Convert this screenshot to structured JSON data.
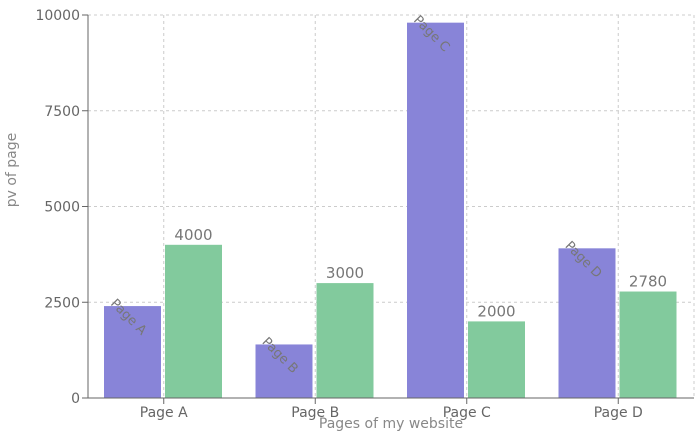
{
  "chart_data": {
    "type": "bar",
    "categories": [
      "Page A",
      "Page B",
      "Page C",
      "Page D"
    ],
    "series": [
      {
        "values": [
          2400,
          1398,
          9800,
          3908
        ],
        "color": "#8884d8",
        "labels": [
          "Page A",
          "Page B",
          "Page C",
          "Page D"
        ]
      },
      {
        "values": [
          4000,
          3000,
          2000,
          2780
        ],
        "color": "#82ca9d",
        "labels": [
          "4000",
          "3000",
          "2000",
          "2780"
        ]
      }
    ],
    "title": "",
    "xlabel": "Pages of my website",
    "ylabel": "pv of page",
    "ylim": [
      0,
      10000
    ],
    "yticks": [
      "0",
      "2500",
      "5000",
      "7500",
      "10000"
    ],
    "grid": true,
    "grid_color": "#cccccc",
    "axis_color": "#666666"
  }
}
